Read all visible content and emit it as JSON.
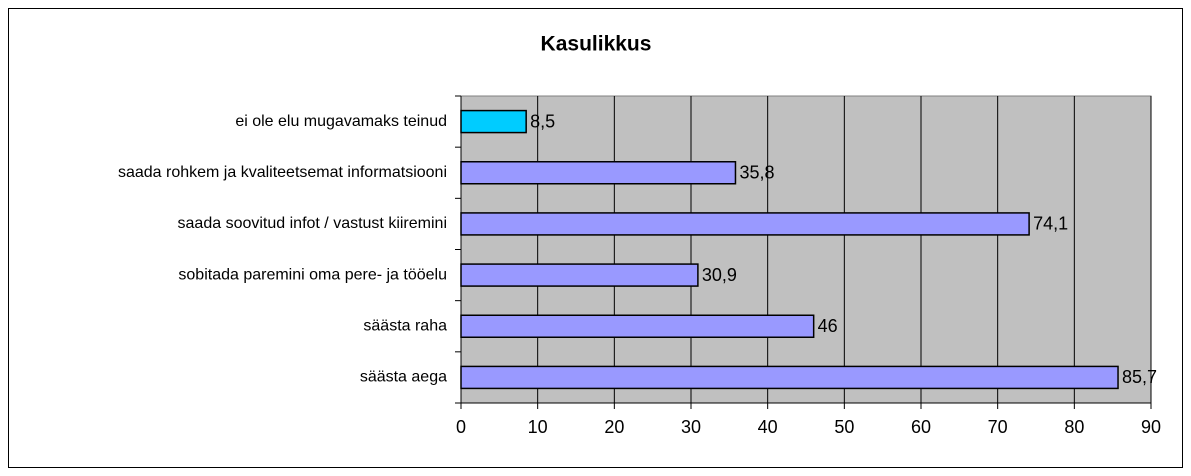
{
  "chart_data": {
    "type": "bar",
    "orientation": "horizontal",
    "title": "Kasulikkus",
    "categories": [
      "ei ole elu mugavamaks teinud",
      "saada rohkem ja kvaliteetsemat informatsiooni",
      "saada soovitud infot / vastust kiiremini",
      "sobitada paremini oma pere- ja tööelu",
      "säästa raha",
      "säästa aega"
    ],
    "values": [
      8.5,
      35.8,
      74.1,
      30.9,
      46,
      85.7
    ],
    "value_labels": [
      "8,5",
      "35,8",
      "74,1",
      "30,9",
      "46",
      "85,7"
    ],
    "colors": [
      "#00ccff",
      "#9999ff",
      "#9999ff",
      "#9999ff",
      "#9999ff",
      "#9999ff"
    ],
    "xlim": [
      0,
      90
    ],
    "xticks": [
      0,
      10,
      20,
      30,
      40,
      50,
      60,
      70,
      80,
      90
    ],
    "grid": true
  }
}
